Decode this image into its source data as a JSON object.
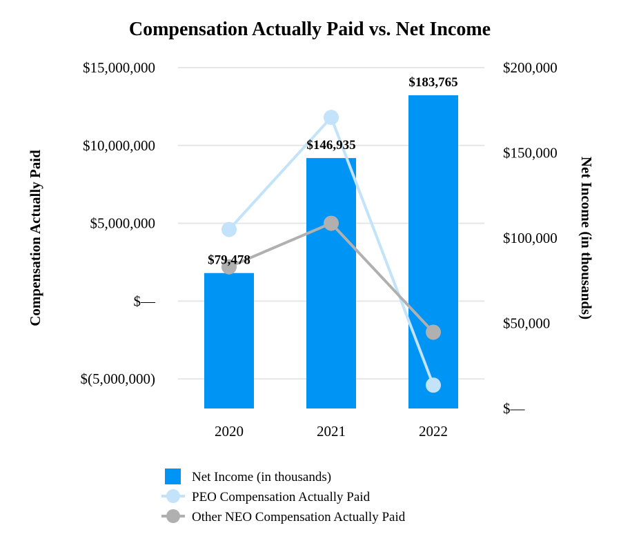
{
  "chart_data": {
    "type": "bar+line",
    "title": "Compensation Actually Paid vs. Net Income",
    "categories": [
      "2020",
      "2021",
      "2022"
    ],
    "left_axis": {
      "label": "Compensation Actually Paid",
      "range": [
        -6900000,
        15000000
      ],
      "ticks": [
        15000000,
        10000000,
        5000000,
        0,
        -5000000
      ],
      "tick_labels": [
        "$15,000,000",
        "$10,000,000",
        "$5,000,000",
        "$—",
        "$(5,000,000)"
      ]
    },
    "right_axis": {
      "label": "Net Income (in thousands)",
      "range": [
        0,
        200000
      ],
      "ticks": [
        200000,
        150000,
        100000,
        50000,
        0
      ],
      "tick_labels": [
        "$200,000",
        "$150,000",
        "$100,000",
        "$50,000",
        "$—"
      ]
    },
    "series": [
      {
        "name": "Net Income (in thousands)",
        "kind": "bar",
        "axis": "right",
        "color": "#0094f5",
        "values": [
          79478,
          146935,
          183765
        ],
        "data_labels": [
          "$79,478",
          "$146,935",
          "$183,765"
        ]
      },
      {
        "name": "PEO Compensation Actually Paid",
        "kind": "line",
        "axis": "left",
        "color": "#c2e3fa",
        "values": [
          4600000,
          11800000,
          -5400000
        ]
      },
      {
        "name": "Other NEO Compensation Actually Paid",
        "kind": "line",
        "axis": "left",
        "color": "#b0b0b0",
        "values": [
          2200000,
          5000000,
          -2000000
        ]
      }
    ],
    "grid": true,
    "legend_position": "bottom"
  }
}
